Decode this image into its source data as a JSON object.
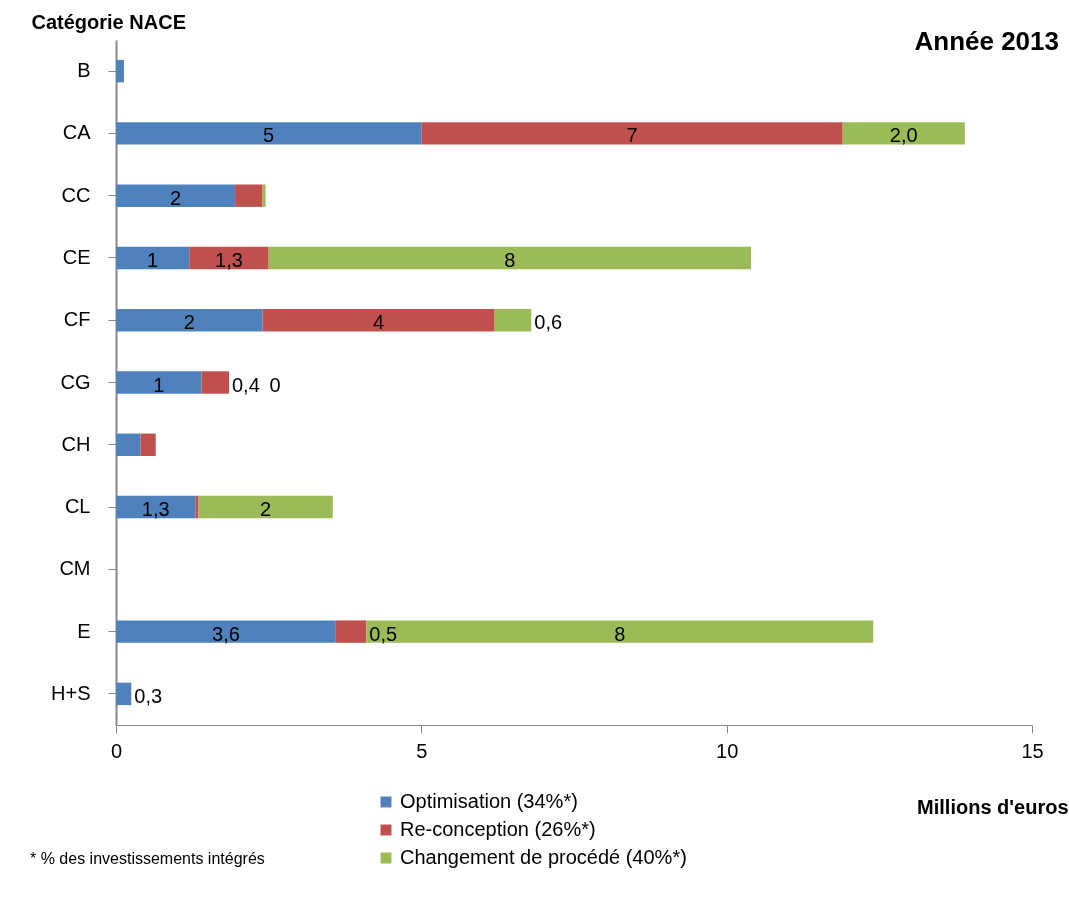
{
  "chart_data": {
    "type": "bar",
    "orientation": "horizontal",
    "stacked": true,
    "title": "Année 2013",
    "ylabel": "Catégorie NACE",
    "xlabel": "Millions d'euros",
    "categories": [
      "B",
      "CA",
      "CC",
      "CE",
      "CF",
      "CG",
      "CH",
      "CL",
      "CM",
      "E",
      "H+S"
    ],
    "series": [
      {
        "name": "Optimisation (34%*)",
        "color": "#4f81bd",
        "values": [
          0.13,
          5.0,
          1.95,
          1.2,
          2.4,
          1.4,
          0.4,
          1.3,
          null,
          3.6,
          0.25
        ],
        "value_labels": [
          null,
          "5",
          "2",
          "1",
          "2",
          "1",
          null,
          "1,3",
          null,
          "3,6",
          "0,3"
        ]
      },
      {
        "name": "Re-conception (26%*)",
        "color": "#c0504d",
        "values": [
          null,
          6.9,
          0.45,
          1.3,
          3.8,
          0.45,
          0.25,
          0.05,
          null,
          0.5,
          null
        ],
        "value_labels": [
          null,
          "7",
          null,
          "1,3",
          "4",
          "0,4",
          null,
          null,
          null,
          "0,5",
          null
        ]
      },
      {
        "name": "Changement de procédé (40%*)",
        "color": "#9bbb59",
        "values": [
          null,
          2.0,
          0.05,
          7.9,
          0.6,
          0,
          null,
          2.2,
          null,
          8.3,
          null
        ],
        "value_labels": [
          null,
          "2,0",
          null,
          "8",
          "0,6",
          "0",
          null,
          "2",
          null,
          "8",
          null
        ]
      }
    ],
    "xlim": [
      0,
      15
    ],
    "xticks": [
      0,
      5,
      10,
      15
    ],
    "legend": "bottom",
    "annotations": [
      "* % des  investissements intégrés"
    ]
  }
}
